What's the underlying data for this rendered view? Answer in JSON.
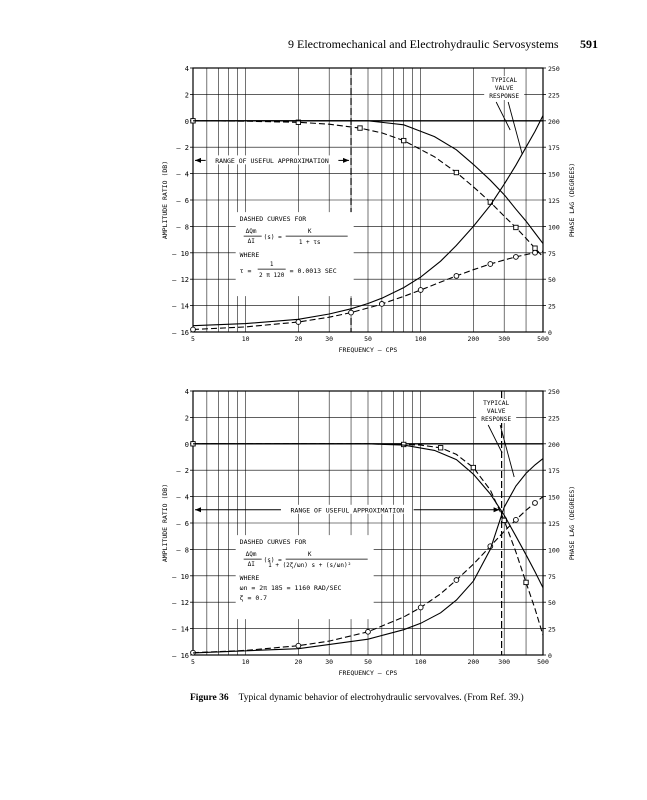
{
  "header": {
    "chapter_title": "9   Electromechanical and Electrohydraulic Servosystems",
    "page_number": "591"
  },
  "caption": {
    "label": "Figure 36",
    "text": "Typical dynamic behavior of electrohydraulic servovalves. (From Ref. 39.)"
  },
  "chart_data": [
    {
      "type": "line",
      "xlabel": "FREQUENCY — CPS",
      "ylabel": "AMPLITUDE RATIO (DB)",
      "y2label": "PHASE LAG (DEGREES)",
      "x_scale": "log",
      "xlim": [
        5,
        500
      ],
      "ylim": [
        -16,
        4
      ],
      "y2lim": [
        0,
        250
      ],
      "x_ticks": [
        5,
        10,
        20,
        30,
        50,
        100,
        200,
        300,
        500
      ],
      "x_tick_labels": [
        "5",
        "10",
        "20",
        "30",
        "50",
        "100",
        "200",
        "300",
        "500"
      ],
      "y_ticks": [
        4,
        2,
        0,
        -2,
        -4,
        -6,
        -8,
        -10,
        -12,
        -14,
        -16
      ],
      "y_tick_labels": [
        "4",
        "2",
        "0",
        "– 2",
        "– 4",
        "– 6",
        "– 8",
        "– 10",
        "– 12",
        "– 14",
        "– 16"
      ],
      "y2_ticks": [
        250,
        225,
        200,
        175,
        150,
        125,
        100,
        75,
        50,
        25,
        0
      ],
      "y2_tick_labels": [
        "250",
        "225",
        "200",
        "175",
        "150",
        "125",
        "100",
        "75",
        "50",
        "25",
        "0"
      ],
      "marker_vline": 40,
      "range_label": "RANGE OF USEFUL APPROXIMATION",
      "range_y": -3,
      "range_x": [
        5,
        40
      ],
      "typical_label": [
        "TYPICAL",
        "VALVE",
        "RESPONSE"
      ],
      "formula": {
        "title": "DASHED CURVES FOR",
        "lhs_num": "ΔQm",
        "lhs_den": "ΔI",
        "lhs_arg": "(s) =",
        "rhs_num": "K",
        "rhs_den": "1 + τs",
        "where": "WHERE",
        "tau_line": "τ =",
        "tau_num": "1",
        "tau_den": "2 π 120",
        "tau_val": "= 0.0013 SEC"
      },
      "series": [
        {
          "style": "dashed",
          "axis": "left",
          "marker": "square",
          "x": [
            5,
            10,
            20,
            30,
            45,
            60,
            80,
            120,
            160,
            200,
            250,
            300,
            350,
            400,
            450,
            500
          ],
          "y": [
            0,
            -0.03,
            -0.11,
            -0.26,
            -0.55,
            -0.92,
            -1.5,
            -2.73,
            -3.92,
            -5.0,
            -6.16,
            -7.23,
            -8.08,
            -8.9,
            -9.65,
            -10.3
          ]
        },
        {
          "style": "dashed",
          "axis": "right",
          "marker": "circle",
          "x": [
            5,
            10,
            20,
            30,
            40,
            55,
            60,
            80,
            100,
            120,
            160,
            200,
            250,
            300,
            350,
            400,
            450,
            500
          ],
          "y": [
            2.4,
            4.8,
            9.5,
            14,
            18.4,
            24.6,
            26.6,
            33.7,
            39.8,
            45,
            53.1,
            59,
            64.4,
            68.2,
            71.1,
            73.3,
            75.1,
            76.5
          ]
        },
        {
          "style": "solid",
          "axis": "left",
          "marker": "none",
          "x": [
            5,
            30,
            50,
            80,
            120,
            160,
            200,
            250,
            300,
            350,
            400,
            450,
            500
          ],
          "y": [
            0,
            0,
            0,
            -0.3,
            -1.2,
            -2.2,
            -3.3,
            -4.5,
            -5.6,
            -6.7,
            -7.6,
            -8.5,
            -9.3
          ]
        },
        {
          "style": "solid",
          "axis": "right",
          "marker": "none",
          "x": [
            5,
            10,
            20,
            30,
            40,
            50,
            60,
            80,
            100,
            130,
            160,
            200,
            250,
            300,
            350,
            400,
            450,
            500
          ],
          "y": [
            6,
            8,
            12,
            17,
            22,
            27,
            32,
            42,
            52,
            67,
            82,
            100,
            120,
            140,
            158,
            175,
            190,
            205
          ]
        }
      ]
    },
    {
      "type": "line",
      "xlabel": "FREQUENCY — CPS",
      "ylabel": "AMPLITUDE RATIO (DB)",
      "y2label": "PHASE LAG (DEGREES)",
      "x_scale": "log",
      "xlim": [
        5,
        500
      ],
      "ylim": [
        -16,
        4
      ],
      "y2lim": [
        0,
        250
      ],
      "x_ticks": [
        5,
        10,
        20,
        30,
        50,
        100,
        200,
        300,
        500
      ],
      "x_tick_labels": [
        "5",
        "10",
        "20",
        "30",
        "50",
        "100",
        "200",
        "300",
        "500"
      ],
      "y_ticks": [
        4,
        2,
        0,
        -2,
        -4,
        -6,
        -8,
        -10,
        -12,
        -14,
        -16
      ],
      "y_tick_labels": [
        "4",
        "2",
        "0",
        "– 2",
        "– 4",
        "– 6",
        "– 8",
        "– 10",
        "– 12",
        "– 14",
        "– 16"
      ],
      "y2_ticks": [
        250,
        225,
        200,
        175,
        150,
        125,
        100,
        75,
        50,
        25,
        0
      ],
      "y2_tick_labels": [
        "250",
        "225",
        "200",
        "175",
        "150",
        "125",
        "100",
        "75",
        "50",
        "25",
        "0"
      ],
      "marker_vline": 290,
      "range_label": "RANGE OF USEFUL APPROXIMATION",
      "range_y": -5,
      "range_x": [
        5,
        290
      ],
      "typical_label": [
        "TYPICAL",
        "VALVE",
        "RESPONSE"
      ],
      "formula": {
        "title": "DASHED CURVES FOR",
        "lhs_num": "ΔQm",
        "lhs_den": "ΔI",
        "lhs_arg": "(s) =",
        "rhs_num": "K",
        "rhs_den": "1 + (2ζ/ωn) s + (s/ωn)²",
        "where": "WHERE",
        "wn_line": "ωn = 2π 185 = 1160 RAD/SEC",
        "zeta_line": "ζ = 0.7"
      },
      "series": [
        {
          "style": "dashed",
          "axis": "left",
          "marker": "square",
          "x": [
            5,
            50,
            80,
            100,
            130,
            160,
            200,
            250,
            300,
            350,
            400,
            450,
            500
          ],
          "y": [
            0,
            0,
            -0.05,
            -0.1,
            -0.3,
            -0.8,
            -1.8,
            -3.5,
            -5.8,
            -8.2,
            -10.5,
            -12.5,
            -14.5
          ]
        },
        {
          "style": "dashed",
          "axis": "right",
          "marker": "circle",
          "x": [
            5,
            10,
            20,
            30,
            50,
            80,
            100,
            130,
            160,
            200,
            250,
            300,
            350,
            400,
            450,
            500
          ],
          "y": [
            2.2,
            4.4,
            8.8,
            13.2,
            22,
            36,
            45,
            58,
            71,
            86,
            103,
            117,
            128,
            137,
            144,
            150
          ]
        },
        {
          "style": "solid",
          "axis": "left",
          "marker": "none",
          "x": [
            5,
            50,
            80,
            120,
            160,
            200,
            250,
            300,
            350,
            400,
            450,
            500
          ],
          "y": [
            0,
            0,
            -0.1,
            -0.5,
            -1.2,
            -2.3,
            -3.8,
            -5.4,
            -7.0,
            -8.4,
            -9.7,
            -10.9
          ]
        },
        {
          "style": "solid",
          "axis": "right",
          "marker": "none",
          "x": [
            5,
            20,
            50,
            80,
            100,
            130,
            160,
            200,
            250,
            300,
            350,
            400,
            450,
            500
          ],
          "y": [
            2,
            6,
            15,
            24,
            30,
            40,
            52,
            70,
            100,
            140,
            160,
            172,
            180,
            186
          ]
        }
      ]
    }
  ]
}
